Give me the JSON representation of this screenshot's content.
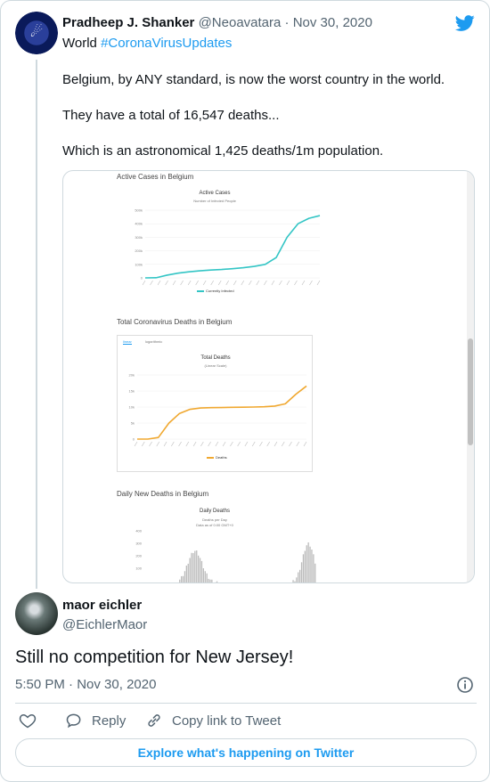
{
  "tweet": {
    "author_name": "Pradheep J. Shanker",
    "author_handle": "@Neoavatara",
    "separator": " · ",
    "date": "Nov 30, 2020",
    "tag_prefix": "World ",
    "hashtag": "#CoronaVirusUpdates",
    "paragraphs": [
      "Belgium, by ANY standard, is now the worst country in the world.",
      "They have a total of 16,547 deaths...",
      "Which is an astronomical 1,425 deaths/1m population."
    ],
    "media": {
      "section1": {
        "heading": "Active Cases in Belgium",
        "chart_title": "Active Cases",
        "chart_subtitle": "Number of Infected People",
        "legend": "Currently Infected"
      },
      "section2": {
        "heading": "Total Coronavirus Deaths in Belgium",
        "tab_linear": "linear",
        "tab_log": "logarithmic",
        "chart_title": "Total Deaths",
        "chart_subtitle": "(Linear Scale)",
        "legend": "Deaths"
      },
      "section3": {
        "heading": "Daily New Deaths in Belgium",
        "chart_title": "Daily Deaths",
        "chart_subtitle1": "Deaths per Day",
        "chart_subtitle2": "Data as of 0:00 GMT+0"
      }
    }
  },
  "reply": {
    "author_name": "maor eichler",
    "author_handle": "@EichlerMaor",
    "text": "Still no competition for New Jersey!",
    "time": "5:50 PM",
    "separator": " · ",
    "date": "Nov 30, 2020",
    "reply_label": "Reply",
    "copy_label": "Copy link to Tweet",
    "explore_label": "Explore what's happening on Twitter"
  },
  "colors": {
    "accent": "#1d9bf0",
    "teal": "#33c5c5",
    "orange": "#f0a830"
  },
  "chart_data": [
    {
      "type": "line",
      "title": "Active Cases",
      "subtitle": "Number of Infected People",
      "ylim": [
        0,
        500000
      ],
      "yticks": [
        "0",
        "100k",
        "200k",
        "300k",
        "400k",
        "500k"
      ],
      "series": [
        {
          "name": "Currently Infected",
          "values": [
            0,
            1000,
            20000,
            35000,
            45000,
            52000,
            58000,
            62000,
            68000,
            75000,
            85000,
            100000,
            150000,
            300000,
            400000,
            440000,
            460000
          ]
        }
      ]
    },
    {
      "type": "line",
      "title": "Total Deaths",
      "subtitle": "(Linear Scale)",
      "ylim": [
        0,
        20000
      ],
      "yticks": [
        "0",
        "5k",
        "10k",
        "15k",
        "20k"
      ],
      "series": [
        {
          "name": "Deaths",
          "values": [
            0,
            0,
            500,
            5000,
            8000,
            9300,
            9700,
            9800,
            9850,
            9900,
            9950,
            10000,
            10100,
            10300,
            11000,
            14000,
            16547
          ]
        }
      ]
    },
    {
      "type": "bar",
      "title": "Daily Deaths",
      "yticks": [
        "100",
        "200",
        "300",
        "400"
      ]
    }
  ]
}
